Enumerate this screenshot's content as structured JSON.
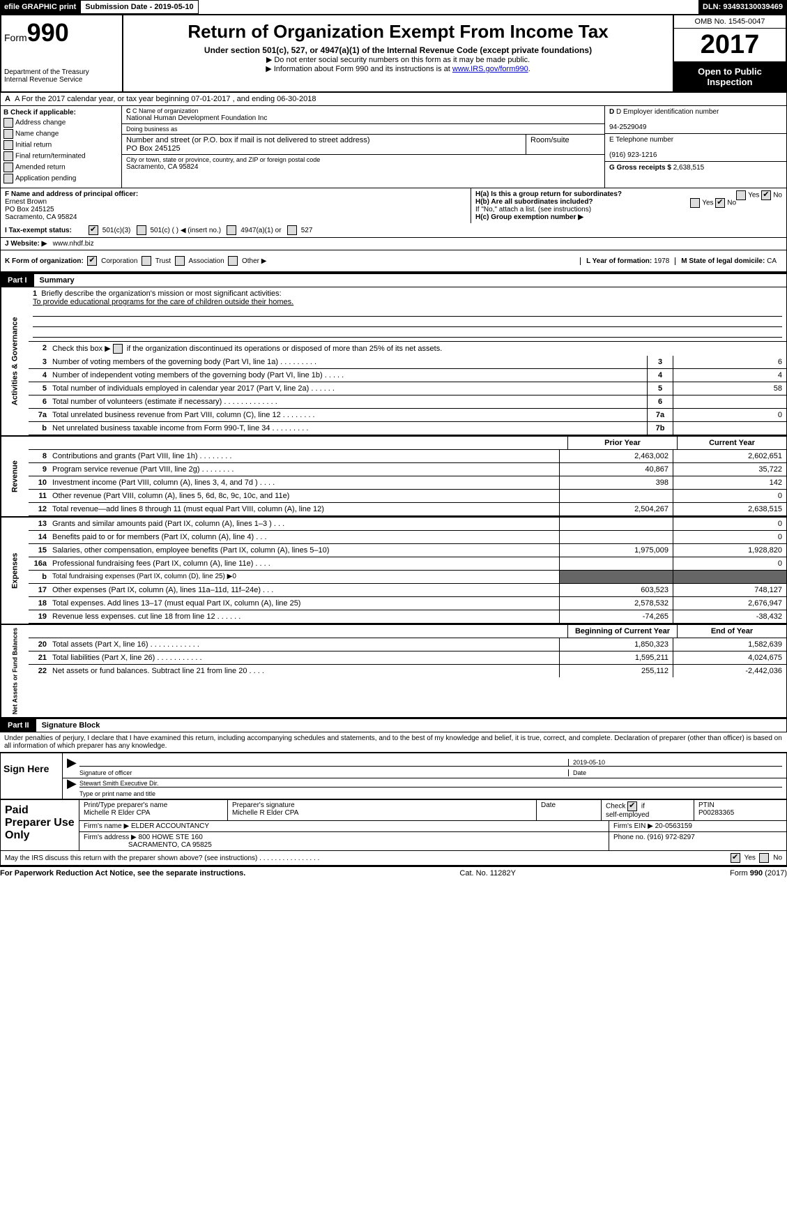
{
  "topbar": {
    "efile": "efile GRAPHIC print",
    "submission_label": "Submission Date - 2019-05-10",
    "dln": "DLN: 93493130039469"
  },
  "header": {
    "form_prefix": "Form",
    "form_number": "990",
    "dept1": "Department of the Treasury",
    "dept2": "Internal Revenue Service",
    "title": "Return of Organization Exempt From Income Tax",
    "subtitle": "Under section 501(c), 527, or 4947(a)(1) of the Internal Revenue Code (except private foundations)",
    "note1": "▶ Do not enter social security numbers on this form as it may be made public.",
    "note2_prefix": "▶ Information about Form 990 and its instructions is at ",
    "note2_link": "www.IRS.gov/form990",
    "omb": "OMB No. 1545-0047",
    "year": "2017",
    "open_public": "Open to Public Inspection"
  },
  "rowA": "A   For the 2017 calendar year, or tax year beginning 07-01-2017      , and ending 06-30-2018",
  "sectionB": {
    "title": "B Check if applicable:",
    "items": [
      "Address change",
      "Name change",
      "Initial return",
      "Final return/terminated",
      "Amended return",
      "Application pending"
    ]
  },
  "sectionC": {
    "name_label": "C Name of organization",
    "name": "National Human Development Foundation Inc",
    "dba_label": "Doing business as",
    "dba": "",
    "street_label": "Number and street (or P.O. box if mail is not delivered to street address)",
    "street": "PO Box 245125",
    "room_label": "Room/suite",
    "city_label": "City or town, state or province, country, and ZIP or foreign postal code",
    "city": "Sacramento, CA  95824"
  },
  "sectionD": {
    "ein_label": "D Employer identification number",
    "ein": "94-2529049",
    "phone_label": "E Telephone number",
    "phone": "(916) 923-1216",
    "gross_label": "G Gross receipts $",
    "gross": "2,638,515"
  },
  "sectionF": {
    "label": "F Name and address of principal officer:",
    "name": "Ernest Brown",
    "street": "PO Box 245125",
    "city": "Sacramento, CA  95824"
  },
  "sectionH": {
    "ha": "H(a)   Is this a group return for subordinates?",
    "hb": "H(b)   Are all subordinates included?",
    "hb_note": "If \"No,\" attach a list. (see instructions)",
    "hc": "H(c)   Group exemption number ▶",
    "yes": "Yes",
    "no": "No"
  },
  "lineI": {
    "label": "I     Tax-exempt status:",
    "opt1": "501(c)(3)",
    "opt2": "501(c) (   ) ◀ (insert no.)",
    "opt3": "4947(a)(1) or",
    "opt4": "527"
  },
  "lineJ": {
    "label": "J    Website: ▶",
    "value": "www.nhdf.biz"
  },
  "lineK": {
    "label": "K Form of organization:",
    "opts": [
      "Corporation",
      "Trust",
      "Association",
      "Other ▶"
    ],
    "l_label": "L Year of formation: ",
    "l_val": "1978",
    "m_label": "M State of legal domicile: ",
    "m_val": "CA"
  },
  "part1": {
    "label": "Part I",
    "title": "Summary"
  },
  "governance": {
    "vlabel": "Activities & Governance",
    "l1_label": "Briefly describe the organization's mission or most significant activities:",
    "l1_text": "To provide educational programs for the care of children outside their homes.",
    "l2": "Check this box ▶       if the organization discontinued its operations or disposed of more than 25% of its net assets.",
    "rows": [
      {
        "num": "3",
        "desc": "Number of voting members of the governing body (Part VI, line 1a)   .    .    .    .    .    .    .    .    .",
        "box": "3",
        "val": "6"
      },
      {
        "num": "4",
        "desc": "Number of independent voting members of the governing body (Part VI, line 1b)    .    .    .    .    .",
        "box": "4",
        "val": "4"
      },
      {
        "num": "5",
        "desc": "Total number of individuals employed in calendar year 2017 (Part V, line 2a)    .    .    .    .    .    .",
        "box": "5",
        "val": "58"
      },
      {
        "num": "6",
        "desc": "Total number of volunteers (estimate if necessary)    .    .    .    .    .    .    .    .    .    .    .    .    .",
        "box": "6",
        "val": ""
      },
      {
        "num": "7a",
        "desc": "Total unrelated business revenue from Part VIII, column (C), line 12    .    .    .    .    .    .    .    .",
        "box": "7a",
        "val": "0"
      },
      {
        "num": "b",
        "desc": "Net unrelated business taxable income from Form 990-T, line 34    .    .    .    .    .    .    .    .    .",
        "box": "7b",
        "val": ""
      }
    ]
  },
  "revenue": {
    "vlabel": "Revenue",
    "head_prior": "Prior Year",
    "head_current": "Current Year",
    "rows": [
      {
        "num": "8",
        "desc": "Contributions and grants (Part VIII, line 1h)    .    .    .    .    .    .    .    .",
        "prior": "2,463,002",
        "curr": "2,602,651"
      },
      {
        "num": "9",
        "desc": "Program service revenue (Part VIII, line 2g)    .    .    .    .    .    .    .    .",
        "prior": "40,867",
        "curr": "35,722"
      },
      {
        "num": "10",
        "desc": "Investment income (Part VIII, column (A), lines 3, 4, and 7d )    .    .    .    .",
        "prior": "398",
        "curr": "142"
      },
      {
        "num": "11",
        "desc": "Other revenue (Part VIII, column (A), lines 5, 6d, 8c, 9c, 10c, and 11e)",
        "prior": "",
        "curr": "0"
      },
      {
        "num": "12",
        "desc": "Total revenue—add lines 8 through 11 (must equal Part VIII, column (A), line 12)",
        "prior": "2,504,267",
        "curr": "2,638,515"
      }
    ]
  },
  "expenses": {
    "vlabel": "Expenses",
    "rows": [
      {
        "num": "13",
        "desc": "Grants and similar amounts paid (Part IX, column (A), lines 1–3 )    .    .    .",
        "prior": "",
        "curr": "0"
      },
      {
        "num": "14",
        "desc": "Benefits paid to or for members (Part IX, column (A), line 4)    .    .    .",
        "prior": "",
        "curr": "0"
      },
      {
        "num": "15",
        "desc": "Salaries, other compensation, employee benefits (Part IX, column (A), lines 5–10)",
        "prior": "1,975,009",
        "curr": "1,928,820"
      },
      {
        "num": "16a",
        "desc": "Professional fundraising fees (Part IX, column (A), line 11e)    .    .    .    .",
        "prior": "",
        "curr": "0"
      },
      {
        "num": "b",
        "desc": "Total fundraising expenses (Part IX, column (D), line 25) ▶0",
        "prior": "GRAY",
        "curr": "GRAY"
      },
      {
        "num": "17",
        "desc": "Other expenses (Part IX, column (A), lines 11a–11d, 11f–24e)    .    .    .",
        "prior": "603,523",
        "curr": "748,127"
      },
      {
        "num": "18",
        "desc": "Total expenses. Add lines 13–17 (must equal Part IX, column (A), line 25)",
        "prior": "2,578,532",
        "curr": "2,676,947"
      },
      {
        "num": "19",
        "desc": "Revenue less expenses. cut line 18 from line 12    .    .    .    .    .    .",
        "prior": "-74,265",
        "curr": "-38,432"
      }
    ]
  },
  "netassets": {
    "vlabel": "Net Assets or Fund Balances",
    "head_begin": "Beginning of Current Year",
    "head_end": "End of Year",
    "rows": [
      {
        "num": "20",
        "desc": "Total assets (Part X, line 16)    .    .    .    .    .    .    .    .    .    .    .    .",
        "prior": "1,850,323",
        "curr": "1,582,639"
      },
      {
        "num": "21",
        "desc": "Total liabilities (Part X, line 26)    .    .    .    .    .    .    .    .    .    .    .",
        "prior": "1,595,211",
        "curr": "4,024,675"
      },
      {
        "num": "22",
        "desc": "Net assets or fund balances. Subtract line 21 from line 20    .    .    .    .",
        "prior": "255,112",
        "curr": "-2,442,036"
      }
    ]
  },
  "part2": {
    "label": "Part II",
    "title": "Signature Block",
    "declaration": "Under penalties of perjury, I declare that I have examined this return, including accompanying schedules and statements, and to the best of my knowledge and belief, it is true, correct, and complete. Declaration of preparer (other than officer) is based on all information of which preparer has any knowledge."
  },
  "sign": {
    "label": "Sign Here",
    "sig_label": "Signature of officer",
    "date": "2019-05-10",
    "date_label": "Date",
    "name": "Stewart Smith  Executive Dir.",
    "name_label": "Type or print name and title"
  },
  "paid": {
    "label": "Paid Preparer Use Only",
    "prep_name_label": "Print/Type preparer's name",
    "prep_name": "Michelle R Elder CPA",
    "prep_sig_label": "Preparer's signature",
    "prep_sig": "Michelle R Elder CPA",
    "date_label": "Date",
    "check_label": "Check         if self-employed",
    "ptin_label": "PTIN",
    "ptin": "P00283365",
    "firm_name_label": "Firm's name      ▶",
    "firm_name": "ELDER ACCOUNTANCY",
    "firm_ein_label": "Firm's EIN ▶",
    "firm_ein": "20-0563159",
    "firm_addr_label": "Firm's address ▶",
    "firm_addr1": "800 HOWE STE 160",
    "firm_addr2": "SACRAMENTO, CA  95825",
    "phone_label": "Phone no.",
    "phone": "(916) 972-8297"
  },
  "discuss": "May the IRS discuss this return with the preparer shown above? (see instructions)    .    .    .    .    .    .    .    .    .    .    .    .    .    .    .    .",
  "footer": {
    "left": "For Paperwork Reduction Act Notice, see the separate instructions.",
    "center": "Cat. No. 11282Y",
    "right": "Form 990 (2017)"
  }
}
